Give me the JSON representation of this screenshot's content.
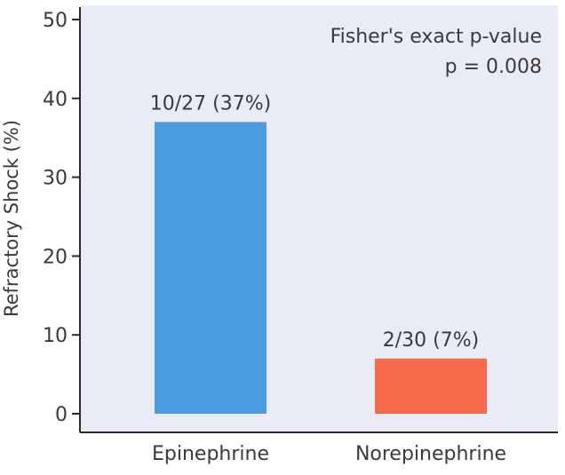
{
  "chart_data": {
    "type": "bar",
    "title": "",
    "xlabel": "",
    "ylabel": "Refractory Shock (%)",
    "ylim": [
      0,
      50
    ],
    "yticks": [
      0,
      10,
      20,
      30,
      40,
      50
    ],
    "grid": false,
    "categories": [
      "Epinephrine",
      "Norepinephrine"
    ],
    "values": [
      37,
      7
    ],
    "data_labels": [
      "10/27 (37%)",
      "2/30 (7%)"
    ],
    "colors": [
      "#4a9ee0",
      "#f76a4b"
    ],
    "background": "#e9ecf6",
    "annotation": {
      "line1": "Fisher's exact p-value",
      "line2": "p = 0.008"
    }
  }
}
